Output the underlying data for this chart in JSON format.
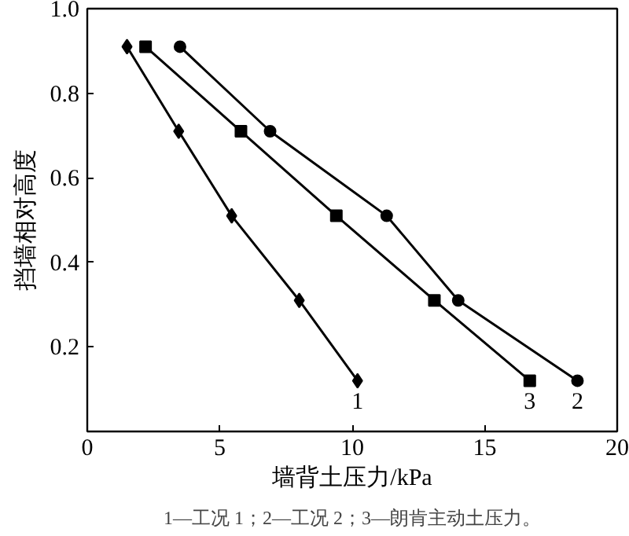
{
  "chart_data": {
    "type": "line",
    "xlabel": "墙背土压力/kPa",
    "ylabel": "挡墙相对高度",
    "xlim": [
      0,
      20
    ],
    "ylim": [
      0,
      1.0
    ],
    "xticks": [
      0,
      5,
      10,
      15,
      20
    ],
    "yticks": [
      0.2,
      0.4,
      0.6,
      0.8,
      {
        "value": 1.0,
        "label": "1.0"
      }
    ],
    "grid": false,
    "line_style": "solid",
    "series": [
      {
        "name": "1",
        "color": "#000000",
        "marker": "diamond",
        "x": [
          1.5,
          3.45,
          5.45,
          8.0,
          10.2
        ],
        "values": [
          0.91,
          0.71,
          0.51,
          0.31,
          0.12
        ]
      },
      {
        "name": "2",
        "color": "#000000",
        "marker": "circle",
        "x": [
          3.5,
          6.9,
          11.3,
          14.0,
          18.5
        ],
        "values": [
          0.91,
          0.71,
          0.51,
          0.31,
          0.12
        ]
      },
      {
        "name": "3",
        "color": "#000000",
        "marker": "square",
        "x": [
          2.2,
          5.8,
          9.4,
          13.1,
          16.7
        ],
        "values": [
          0.91,
          0.71,
          0.51,
          0.31,
          0.12
        ]
      }
    ],
    "annotations": [
      "1—工况 1；2—工况 2；3—朗肯主动土压力。"
    ]
  }
}
